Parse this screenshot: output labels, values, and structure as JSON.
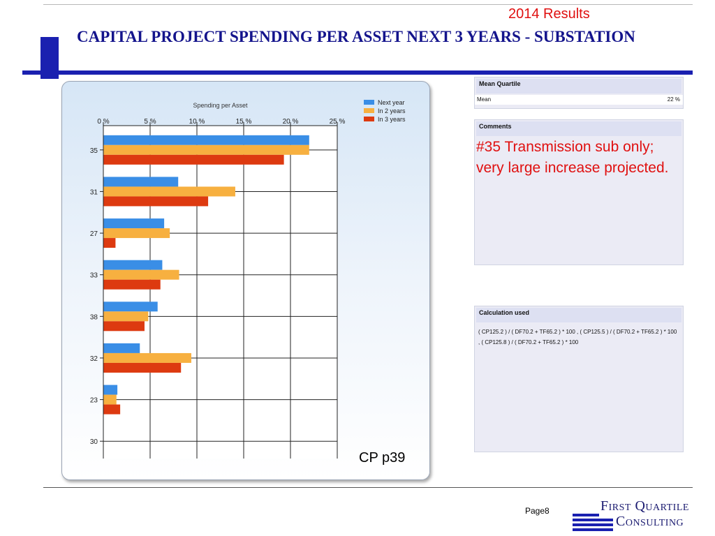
{
  "header": {
    "results_label": "2014 Results",
    "title": "CAPITAL PROJECT SPENDING PER ASSET NEXT 3 YEARS  - SUBSTATION"
  },
  "chart_data": {
    "type": "bar",
    "orientation": "horizontal",
    "title": "Spending per Asset",
    "categories": [
      "35",
      "31",
      "27",
      "33",
      "38",
      "32",
      "23",
      "30"
    ],
    "series": [
      {
        "name": "Next year",
        "color": "#3a8ee6",
        "values": [
          22.0,
          8.0,
          6.5,
          6.3,
          5.8,
          3.9,
          1.5,
          0
        ]
      },
      {
        "name": "In 2 years",
        "color": "#f7b040",
        "values": [
          22.0,
          14.1,
          7.1,
          8.1,
          4.8,
          9.4,
          1.4,
          0
        ]
      },
      {
        "name": "In 3 years",
        "color": "#dd3a10",
        "values": [
          19.3,
          11.2,
          1.3,
          6.1,
          4.4,
          8.3,
          1.8,
          0
        ]
      }
    ],
    "xlim": [
      0,
      25
    ],
    "x_ticks": [
      "0 %",
      "5 %",
      "10 %",
      "15 %",
      "20 %",
      "25 %"
    ],
    "axis_position": "top",
    "legend_position": "top-right",
    "grid": true
  },
  "chart_note": "CP p39",
  "mean_panel": {
    "header": "Mean Quartile",
    "row_label": "Mean",
    "row_value": "22 %"
  },
  "comments_panel": {
    "header": "Comments",
    "text": "#35 Transmission sub only; very large increase projected."
  },
  "calc_panel": {
    "header": "Calculation used",
    "text": "( CP125.2 ) / ( DF70.2 + TF65.2 ) * 100 , ( CP125.5 ) / ( DF70.2 + TF65.2 ) * 100 , ( CP125.8 ) / ( DF70.2 + TF65.2 ) * 100"
  },
  "footer": {
    "page_label": "Page8",
    "logo_line1": "First Quartile",
    "logo_line2": "Consulting"
  }
}
